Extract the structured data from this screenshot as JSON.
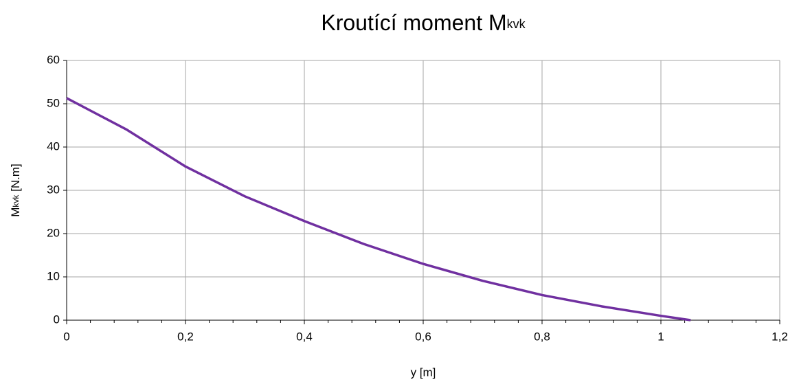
{
  "chart_data": {
    "type": "line",
    "title": {
      "main": "Kroutící moment M",
      "sub": "kvk"
    },
    "x_label": "y [m]",
    "y_label": {
      "main": "M",
      "sub": "kvk",
      "unit": " [N.m]"
    },
    "x": [
      0,
      0.1,
      0.2,
      0.3,
      0.4,
      0.5,
      0.6,
      0.7,
      0.8,
      0.9,
      1.0,
      1.05
    ],
    "series": [
      {
        "color": "#7030a0",
        "values": [
          51.3,
          44.1,
          35.5,
          28.6,
          22.9,
          17.6,
          13.0,
          9.1,
          5.8,
          3.2,
          1.0,
          0
        ]
      }
    ],
    "xlim": [
      0,
      1.2
    ],
    "ylim": [
      0,
      60
    ],
    "xticks": [
      0,
      {
        "value": 0.2,
        "label": "0,2"
      },
      {
        "value": 0.4,
        "label": "0,4"
      },
      {
        "value": 0.6,
        "label": "0,6"
      },
      {
        "value": 0.8,
        "label": "0,8"
      },
      1,
      {
        "value": 1.2,
        "label": "1,2"
      }
    ],
    "yticks": [
      0,
      10,
      20,
      30,
      40,
      50,
      60
    ],
    "x_minor_divisions": 5,
    "grid": true
  }
}
